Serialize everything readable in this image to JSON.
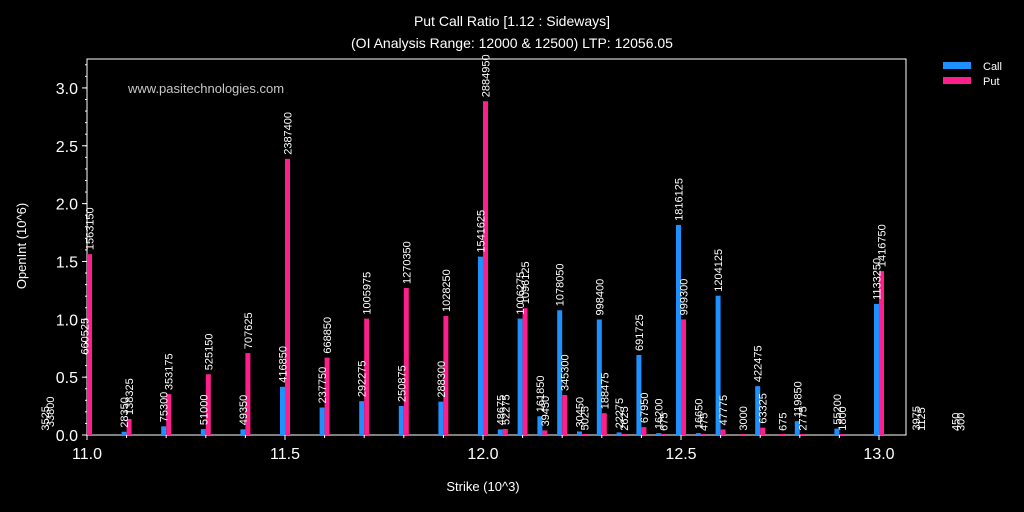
{
  "title": "Put Call Ratio [1.12 : Sideways]",
  "subtitle": "(OI Analysis Range: 12000 & 12500) LTP: 12056.05",
  "watermark": "www.pasitechnologies.com",
  "chart_data": {
    "type": "bar",
    "xlabel": "Strike (10^3)",
    "ylabel": "OpenInt (10^6)",
    "xlim": [
      11.0,
      13.0
    ],
    "ylim": [
      0,
      3.25
    ],
    "xticks": [
      "11.0",
      "11.5",
      "12.0",
      "12.5",
      "13.0"
    ],
    "yticks": [
      "0.0",
      "0.5",
      "1.0",
      "1.5",
      "2.0",
      "2.5",
      "3.0"
    ],
    "legend_position": "top-right",
    "grid": false,
    "series": [
      {
        "name": "Call",
        "color": "#1e90ff",
        "points": [
          {
            "strike": 10.9,
            "value": 3525
          },
          {
            "strike": 11.0,
            "value": 660525
          },
          {
            "strike": 11.1,
            "value": 28350
          },
          {
            "strike": 11.2,
            "value": 75300
          },
          {
            "strike": 11.3,
            "value": 51000
          },
          {
            "strike": 11.4,
            "value": 49350
          },
          {
            "strike": 11.5,
            "value": 416850
          },
          {
            "strike": 11.6,
            "value": 237750
          },
          {
            "strike": 11.7,
            "value": 292275
          },
          {
            "strike": 11.8,
            "value": 250875
          },
          {
            "strike": 11.9,
            "value": 288300
          },
          {
            "strike": 12.0,
            "value": 1541625
          },
          {
            "strike": 12.05,
            "value": 48675
          },
          {
            "strike": 12.1,
            "value": 1006275
          },
          {
            "strike": 12.15,
            "value": 161850
          },
          {
            "strike": 12.2,
            "value": 1078050
          },
          {
            "strike": 12.25,
            "value": 30450
          },
          {
            "strike": 12.3,
            "value": 998400
          },
          {
            "strike": 12.35,
            "value": 22275
          },
          {
            "strike": 12.4,
            "value": 691725
          },
          {
            "strike": 12.45,
            "value": 16200
          },
          {
            "strike": 12.5,
            "value": 1816125
          },
          {
            "strike": 12.55,
            "value": 16650
          },
          {
            "strike": 12.6,
            "value": 1204125
          },
          {
            "strike": 12.7,
            "value": 422475
          },
          {
            "strike": 12.8,
            "value": 119850
          },
          {
            "strike": 12.9,
            "value": 55200
          },
          {
            "strike": 13.0,
            "value": 1133250
          },
          {
            "strike": 13.1,
            "value": 3975
          },
          {
            "strike": 13.2,
            "value": 450
          }
        ]
      },
      {
        "name": "Put",
        "color": "#ff1e8c",
        "points": [
          {
            "strike": 10.9,
            "value": 33800
          },
          {
            "strike": 11.0,
            "value": 1563150
          },
          {
            "strike": 11.1,
            "value": 138325
          },
          {
            "strike": 11.2,
            "value": 353175
          },
          {
            "strike": 11.3,
            "value": 525150
          },
          {
            "strike": 11.4,
            "value": 707625
          },
          {
            "strike": 11.5,
            "value": 2387400
          },
          {
            "strike": 11.6,
            "value": 668850
          },
          {
            "strike": 11.7,
            "value": 1005975
          },
          {
            "strike": 11.8,
            "value": 1270350
          },
          {
            "strike": 11.9,
            "value": 1028250
          },
          {
            "strike": 12.0,
            "value": 2884950
          },
          {
            "strike": 12.05,
            "value": 52275
          },
          {
            "strike": 12.1,
            "value": 1096125
          },
          {
            "strike": 12.15,
            "value": 39450
          },
          {
            "strike": 12.2,
            "value": 345300
          },
          {
            "strike": 12.25,
            "value": 5025
          },
          {
            "strike": 12.3,
            "value": 188475
          },
          {
            "strike": 12.35,
            "value": 2625
          },
          {
            "strike": 12.4,
            "value": 67950
          },
          {
            "strike": 12.45,
            "value": 675
          },
          {
            "strike": 12.5,
            "value": 999300
          },
          {
            "strike": 12.55,
            "value": 475
          },
          {
            "strike": 12.6,
            "value": 47775
          },
          {
            "strike": 12.65,
            "value": 3000
          },
          {
            "strike": 12.7,
            "value": 63325
          },
          {
            "strike": 12.75,
            "value": 675
          },
          {
            "strike": 12.8,
            "value": 2775
          },
          {
            "strike": 12.9,
            "value": 1800
          },
          {
            "strike": 13.0,
            "value": 1416750
          },
          {
            "strike": 13.1,
            "value": 1125
          },
          {
            "strike": 13.2,
            "value": 300
          }
        ]
      }
    ]
  }
}
